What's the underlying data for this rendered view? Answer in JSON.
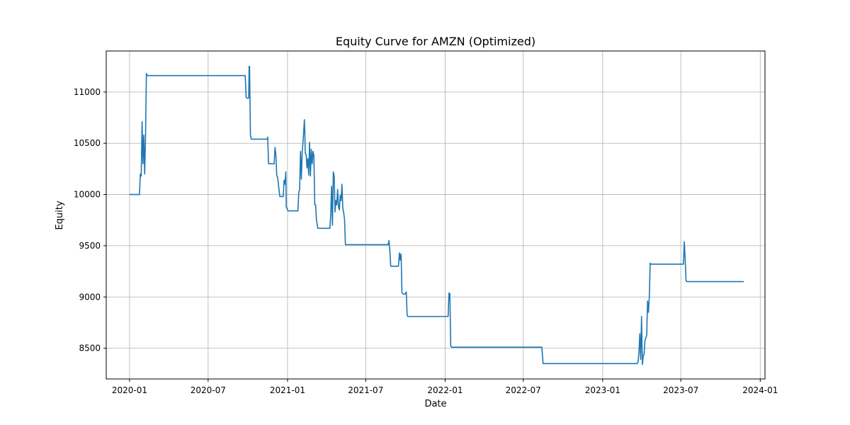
{
  "chart_data": {
    "type": "line",
    "title": "Equity Curve for AMZN (Optimized)",
    "xlabel": "Date",
    "ylabel": "Equity",
    "grid": true,
    "xlim": [
      "2019-11-08",
      "2024-01-12"
    ],
    "ylim": [
      8200,
      11400
    ],
    "x_ticks": [
      "2020-01",
      "2020-07",
      "2021-01",
      "2021-07",
      "2022-01",
      "2022-07",
      "2023-01",
      "2023-07",
      "2024-01"
    ],
    "y_ticks": [
      8500,
      9000,
      9500,
      10000,
      10500,
      11000
    ],
    "line_color": "#1f77b4",
    "series": [
      {
        "points": [
          [
            "2020-01-01",
            10000
          ],
          [
            "2020-01-24",
            10000
          ],
          [
            "2020-01-26",
            10200
          ],
          [
            "2020-01-28",
            10180
          ],
          [
            "2020-01-30",
            10710
          ],
          [
            "2020-02-01",
            10300
          ],
          [
            "2020-02-03",
            10580
          ],
          [
            "2020-02-05",
            10200
          ],
          [
            "2020-02-07",
            10560
          ],
          [
            "2020-02-09",
            11180
          ],
          [
            "2020-02-11",
            11160
          ],
          [
            "2020-09-25",
            11160
          ],
          [
            "2020-09-27",
            10950
          ],
          [
            "2020-09-29",
            10940
          ],
          [
            "2020-10-03",
            10940
          ],
          [
            "2020-10-04",
            11250
          ],
          [
            "2020-10-05",
            11250
          ],
          [
            "2020-10-07",
            10580
          ],
          [
            "2020-10-09",
            10540
          ],
          [
            "2020-11-15",
            10540
          ],
          [
            "2020-11-16",
            10560
          ],
          [
            "2020-11-18",
            10300
          ],
          [
            "2020-12-01",
            10300
          ],
          [
            "2020-12-03",
            10460
          ],
          [
            "2020-12-05",
            10380
          ],
          [
            "2020-12-07",
            10180
          ],
          [
            "2020-12-09",
            10170
          ],
          [
            "2020-12-14",
            9980
          ],
          [
            "2020-12-22",
            9980
          ],
          [
            "2020-12-24",
            10140
          ],
          [
            "2020-12-26",
            10100
          ],
          [
            "2020-12-28",
            10220
          ],
          [
            "2020-12-29",
            9880
          ],
          [
            "2021-01-02",
            9840
          ],
          [
            "2021-01-25",
            9840
          ],
          [
            "2021-01-27",
            10020
          ],
          [
            "2021-01-29",
            10050
          ],
          [
            "2021-01-31",
            10420
          ],
          [
            "2021-02-02",
            10150
          ],
          [
            "2021-02-04",
            10420
          ],
          [
            "2021-02-06",
            10520
          ],
          [
            "2021-02-08",
            10660
          ],
          [
            "2021-02-09",
            10730
          ],
          [
            "2021-02-10",
            10600
          ],
          [
            "2021-02-11",
            10400
          ],
          [
            "2021-02-13",
            10390
          ],
          [
            "2021-02-15",
            10260
          ],
          [
            "2021-02-17",
            10350
          ],
          [
            "2021-02-19",
            10190
          ],
          [
            "2021-02-21",
            10510
          ],
          [
            "2021-02-23",
            10180
          ],
          [
            "2021-02-25",
            10440
          ],
          [
            "2021-02-27",
            10300
          ],
          [
            "2021-03-01",
            10420
          ],
          [
            "2021-03-03",
            10380
          ],
          [
            "2021-03-05",
            9900
          ],
          [
            "2021-03-07",
            9900
          ],
          [
            "2021-03-09",
            9750
          ],
          [
            "2021-03-12",
            9670
          ],
          [
            "2021-04-09",
            9670
          ],
          [
            "2021-04-11",
            9800
          ],
          [
            "2021-04-13",
            10080
          ],
          [
            "2021-04-15",
            9700
          ],
          [
            "2021-04-17",
            10220
          ],
          [
            "2021-04-19",
            10180
          ],
          [
            "2021-04-21",
            9830
          ],
          [
            "2021-04-23",
            9940
          ],
          [
            "2021-04-25",
            9900
          ],
          [
            "2021-04-27",
            10050
          ],
          [
            "2021-04-29",
            9880
          ],
          [
            "2021-05-01",
            9850
          ],
          [
            "2021-05-03",
            9990
          ],
          [
            "2021-05-05",
            9940
          ],
          [
            "2021-05-07",
            10100
          ],
          [
            "2021-05-09",
            9870
          ],
          [
            "2021-05-11",
            9820
          ],
          [
            "2021-05-13",
            9760
          ],
          [
            "2021-05-15",
            9510
          ],
          [
            "2021-05-18",
            9510
          ],
          [
            "2021-08-22",
            9510
          ],
          [
            "2021-08-24",
            9550
          ],
          [
            "2021-08-26",
            9450
          ],
          [
            "2021-08-28",
            9300
          ],
          [
            "2021-09-15",
            9300
          ],
          [
            "2021-09-17",
            9430
          ],
          [
            "2021-09-19",
            9360
          ],
          [
            "2021-09-21",
            9420
          ],
          [
            "2021-09-23",
            9040
          ],
          [
            "2021-09-26",
            9030
          ],
          [
            "2021-10-01",
            9030
          ],
          [
            "2021-10-03",
            9050
          ],
          [
            "2021-10-05",
            8820
          ],
          [
            "2021-10-07",
            8810
          ],
          [
            "2022-01-08",
            8810
          ],
          [
            "2022-01-10",
            9040
          ],
          [
            "2022-01-12",
            9030
          ],
          [
            "2022-01-14",
            8520
          ],
          [
            "2022-01-16",
            8510
          ],
          [
            "2022-08-13",
            8510
          ],
          [
            "2022-08-16",
            8350
          ],
          [
            "2023-03-22",
            8350
          ],
          [
            "2023-03-24",
            8370
          ],
          [
            "2023-03-26",
            8460
          ],
          [
            "2023-03-28",
            8640
          ],
          [
            "2023-03-30",
            8390
          ],
          [
            "2023-04-01",
            8810
          ],
          [
            "2023-04-03",
            8340
          ],
          [
            "2023-04-05",
            8430
          ],
          [
            "2023-04-07",
            8440
          ],
          [
            "2023-04-09",
            8580
          ],
          [
            "2023-04-11",
            8600
          ],
          [
            "2023-04-13",
            8630
          ],
          [
            "2023-04-15",
            8960
          ],
          [
            "2023-04-17",
            8850
          ],
          [
            "2023-04-19",
            9000
          ],
          [
            "2023-04-21",
            9330
          ],
          [
            "2023-04-23",
            9320
          ],
          [
            "2023-07-07",
            9320
          ],
          [
            "2023-07-09",
            9540
          ],
          [
            "2023-07-11",
            9380
          ],
          [
            "2023-07-13",
            9160
          ],
          [
            "2023-07-15",
            9150
          ],
          [
            "2023-11-24",
            9150
          ]
        ]
      }
    ]
  }
}
